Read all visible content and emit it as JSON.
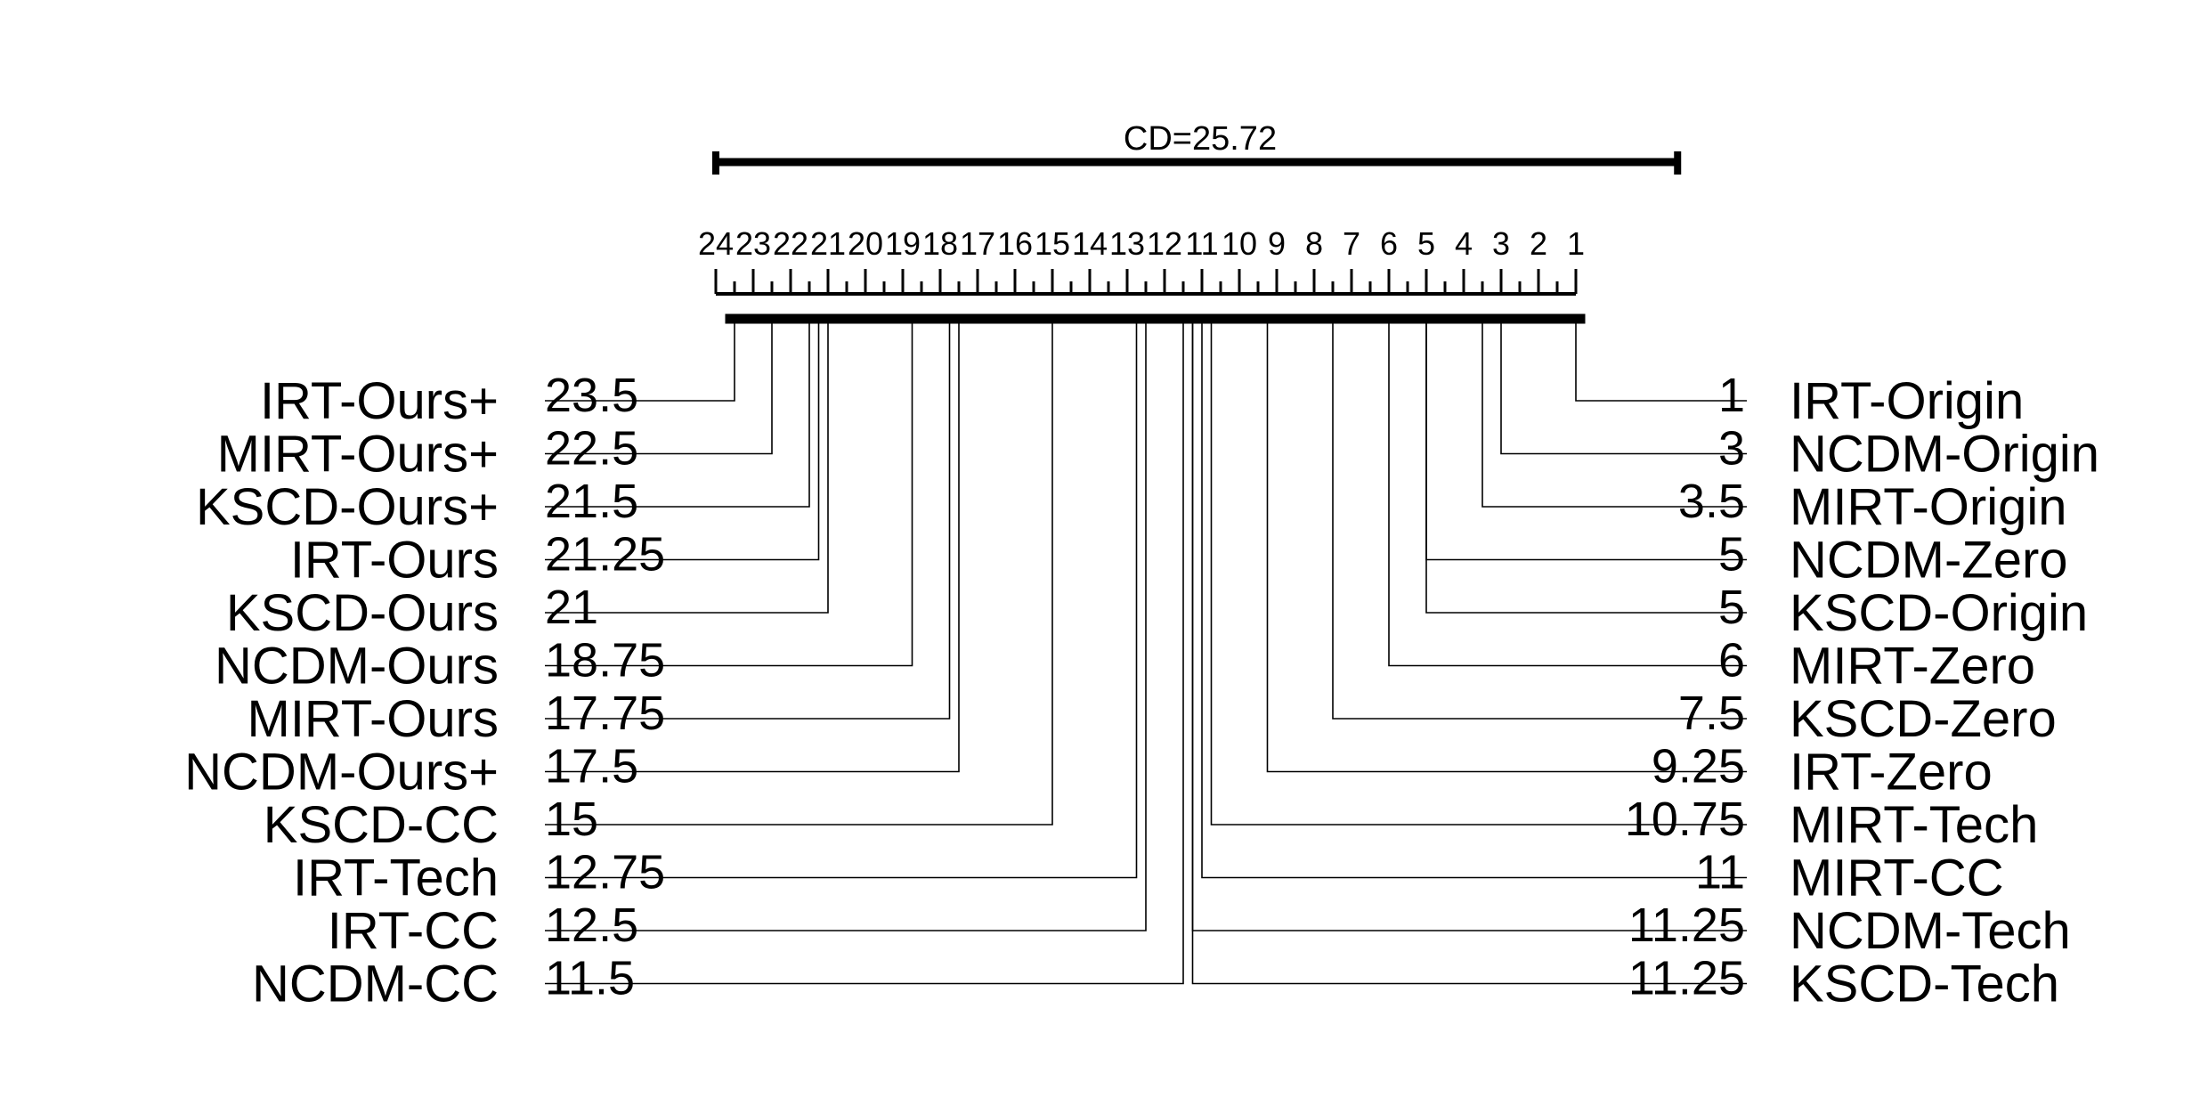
{
  "chart_data": {
    "type": "critical-difference-diagram",
    "cd_label": "CD=25.72",
    "cd_value": 25.72,
    "axis": {
      "min": 1,
      "max": 24,
      "reversed": true,
      "tick_labels": [
        "24",
        "23",
        "22",
        "21",
        "20",
        "19",
        "18",
        "17",
        "16",
        "15",
        "14",
        "13",
        "12",
        "11",
        "10",
        "9",
        "8",
        "7",
        "6",
        "5",
        "4",
        "3",
        "2",
        "1"
      ]
    },
    "clique": {
      "from": 23.75,
      "to": 0.75
    },
    "left_methods": [
      {
        "name": "IRT-Ours+",
        "rank_label": "23.5",
        "rank": 23.5
      },
      {
        "name": "MIRT-Ours+",
        "rank_label": "22.5",
        "rank": 22.5
      },
      {
        "name": "KSCD-Ours+",
        "rank_label": "21.5",
        "rank": 21.5
      },
      {
        "name": "IRT-Ours",
        "rank_label": "21.25",
        "rank": 21.25
      },
      {
        "name": "KSCD-Ours",
        "rank_label": "21",
        "rank": 21
      },
      {
        "name": "NCDM-Ours",
        "rank_label": "18.75",
        "rank": 18.75
      },
      {
        "name": "MIRT-Ours",
        "rank_label": "17.75",
        "rank": 17.75
      },
      {
        "name": "NCDM-Ours+",
        "rank_label": "17.5",
        "rank": 17.5
      },
      {
        "name": "KSCD-CC",
        "rank_label": "15",
        "rank": 15
      },
      {
        "name": "IRT-Tech",
        "rank_label": "12.75",
        "rank": 12.75
      },
      {
        "name": "IRT-CC",
        "rank_label": "12.5",
        "rank": 12.5
      },
      {
        "name": "NCDM-CC",
        "rank_label": "11.5",
        "rank": 11.5
      }
    ],
    "right_methods": [
      {
        "name": "IRT-Origin",
        "rank_label": "1",
        "rank": 1
      },
      {
        "name": "NCDM-Origin",
        "rank_label": "3",
        "rank": 3
      },
      {
        "name": "MIRT-Origin",
        "rank_label": "3.5",
        "rank": 3.5
      },
      {
        "name": "NCDM-Zero",
        "rank_label": "5",
        "rank": 5
      },
      {
        "name": "KSCD-Origin",
        "rank_label": "5",
        "rank": 5
      },
      {
        "name": "MIRT-Zero",
        "rank_label": "6",
        "rank": 6
      },
      {
        "name": "KSCD-Zero",
        "rank_label": "7.5",
        "rank": 7.5
      },
      {
        "name": "IRT-Zero",
        "rank_label": "9.25",
        "rank": 9.25
      },
      {
        "name": "MIRT-Tech",
        "rank_label": "10.75",
        "rank": 10.75
      },
      {
        "name": "MIRT-CC",
        "rank_label": "11",
        "rank": 11
      },
      {
        "name": "NCDM-Tech",
        "rank_label": "11.25",
        "rank": 11.25
      },
      {
        "name": "KSCD-Tech",
        "rank_label": "11.25",
        "rank": 11.25
      }
    ]
  }
}
